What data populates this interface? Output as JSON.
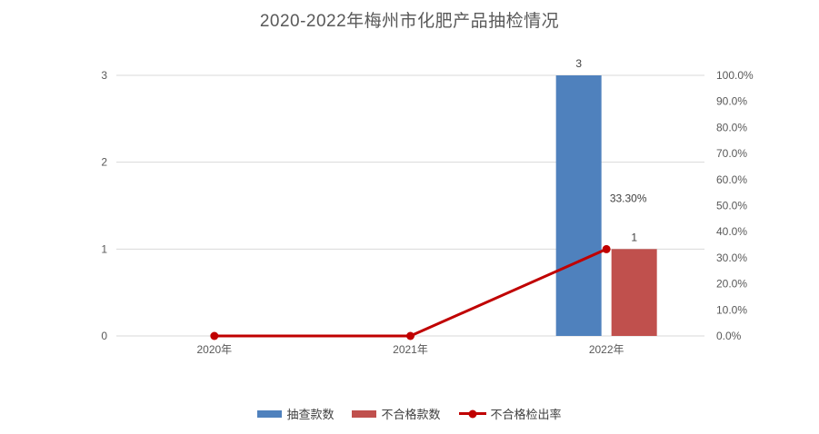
{
  "chart_data": {
    "type": "bar",
    "title": "2020-2022年梅州市化肥产品抽检情况",
    "categories": [
      "2020年",
      "2021年",
      "2022年"
    ],
    "series": [
      {
        "name": "抽查款数",
        "type": "bar",
        "axis": "left",
        "color": "#4F81BD",
        "values": [
          0,
          0,
          3
        ],
        "labels": [
          "",
          "",
          "3"
        ]
      },
      {
        "name": "不合格款数",
        "type": "bar",
        "axis": "left",
        "color": "#C0504D",
        "values": [
          0,
          0,
          1
        ],
        "labels": [
          "",
          "",
          "1"
        ]
      },
      {
        "name": "不合格检出率",
        "type": "line",
        "axis": "right",
        "color": "#C00000",
        "values": [
          0,
          0,
          0.333
        ],
        "labels": [
          "",
          "",
          "33.30%"
        ]
      }
    ],
    "left_axis": {
      "min": 0,
      "max": 3,
      "ticks": [
        "0",
        "1",
        "2",
        "3"
      ]
    },
    "right_axis": {
      "min": 0,
      "max": 1,
      "ticks": [
        "0.0%",
        "10.0%",
        "20.0%",
        "30.0%",
        "40.0%",
        "50.0%",
        "60.0%",
        "70.0%",
        "80.0%",
        "90.0%",
        "100.0%"
      ]
    },
    "legend": [
      {
        "label": "抽查款数",
        "swatch": "bar",
        "color": "#4F81BD"
      },
      {
        "label": "不合格款数",
        "swatch": "bar",
        "color": "#C0504D"
      },
      {
        "label": "不合格检出率",
        "swatch": "line",
        "color": "#C00000"
      }
    ],
    "grid": true,
    "legend_position": "bottom",
    "colors": {
      "gridline": "#D9D9D9",
      "axis_text": "#595959",
      "title_text": "#595959"
    }
  }
}
